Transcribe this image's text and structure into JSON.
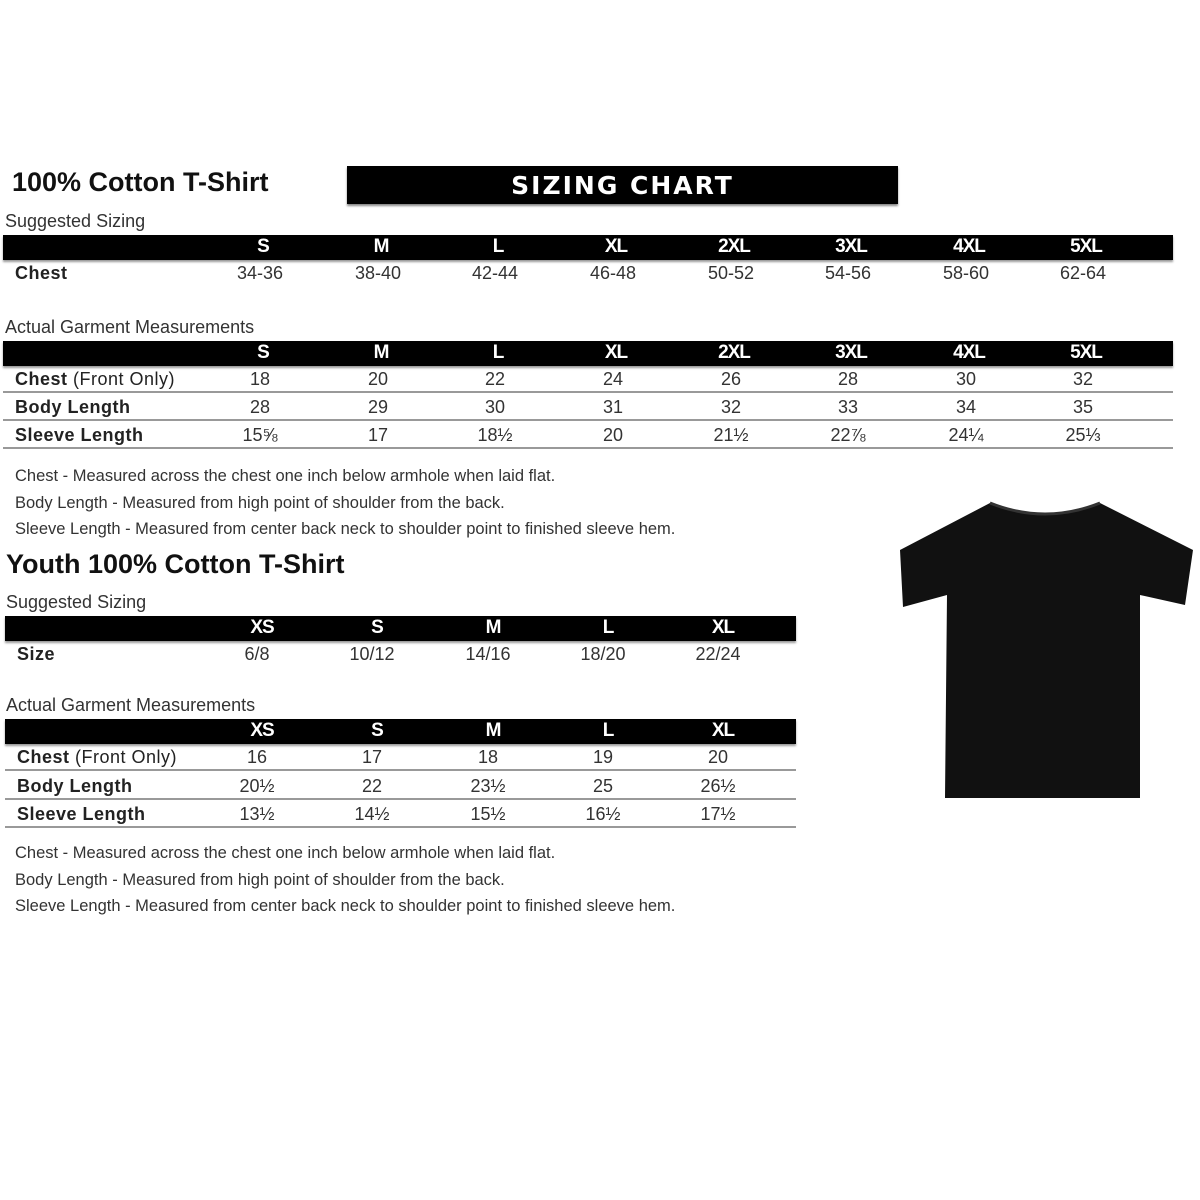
{
  "adult": {
    "title": "100% Cotton T-Shirt",
    "banner": "SIZING CHART",
    "suggested_label": "Suggested Sizing",
    "sizes": [
      "S",
      "M",
      "L",
      "XL",
      "2XL",
      "3XL",
      "4XL",
      "5XL"
    ],
    "suggested_rows": [
      {
        "label": "Chest",
        "values": [
          "34-36",
          "38-40",
          "42-44",
          "46-48",
          "50-52",
          "54-56",
          "58-60",
          "62-64"
        ]
      }
    ],
    "actual_label": "Actual Garment Measurements",
    "actual_rows": [
      {
        "label": "Chest",
        "label_extra": " (Front Only)",
        "values": [
          "18",
          "20",
          "22",
          "24",
          "26",
          "28",
          "30",
          "32"
        ]
      },
      {
        "label": "Body Length",
        "values": [
          "28",
          "29",
          "30",
          "31",
          "32",
          "33",
          "34",
          "35"
        ]
      },
      {
        "label": "Sleeve Length",
        "values": [
          "15⅝",
          "17",
          "18½",
          "20",
          "21½",
          "22⅞",
          "24¼",
          "25⅓"
        ]
      }
    ],
    "notes": [
      "Chest - Measured across the chest one inch below armhole when laid flat.",
      "Body Length - Measured from high point of shoulder from the back.",
      "Sleeve Length - Measured from center back neck to shoulder point to finished sleeve hem."
    ]
  },
  "youth": {
    "title": "Youth 100% Cotton T-Shirt",
    "suggested_label": "Suggested Sizing",
    "sizes": [
      "XS",
      "S",
      "M",
      "L",
      "XL"
    ],
    "suggested_rows": [
      {
        "label": "Size",
        "values": [
          "6/8",
          "10/12",
          "14/16",
          "18/20",
          "22/24"
        ]
      }
    ],
    "actual_label": "Actual Garment Measurements",
    "actual_rows": [
      {
        "label": "Chest",
        "label_extra": " (Front Only)",
        "values": [
          "16",
          "17",
          "18",
          "19",
          "20"
        ]
      },
      {
        "label": "Body Length",
        "values": [
          "20½",
          "22",
          "23½",
          "25",
          "26½"
        ]
      },
      {
        "label": "Sleeve Length",
        "values": [
          "13½",
          "14½",
          "15½",
          "16½",
          "17½"
        ]
      }
    ],
    "notes": [
      "Chest - Measured across the chest one inch below armhole when laid flat.",
      "Body Length - Measured from high point of shoulder from the back.",
      "Sleeve Length - Measured from center back neck to shoulder point to finished sleeve hem."
    ]
  },
  "colors": {
    "header": "#000000",
    "shirt": "#111111"
  }
}
